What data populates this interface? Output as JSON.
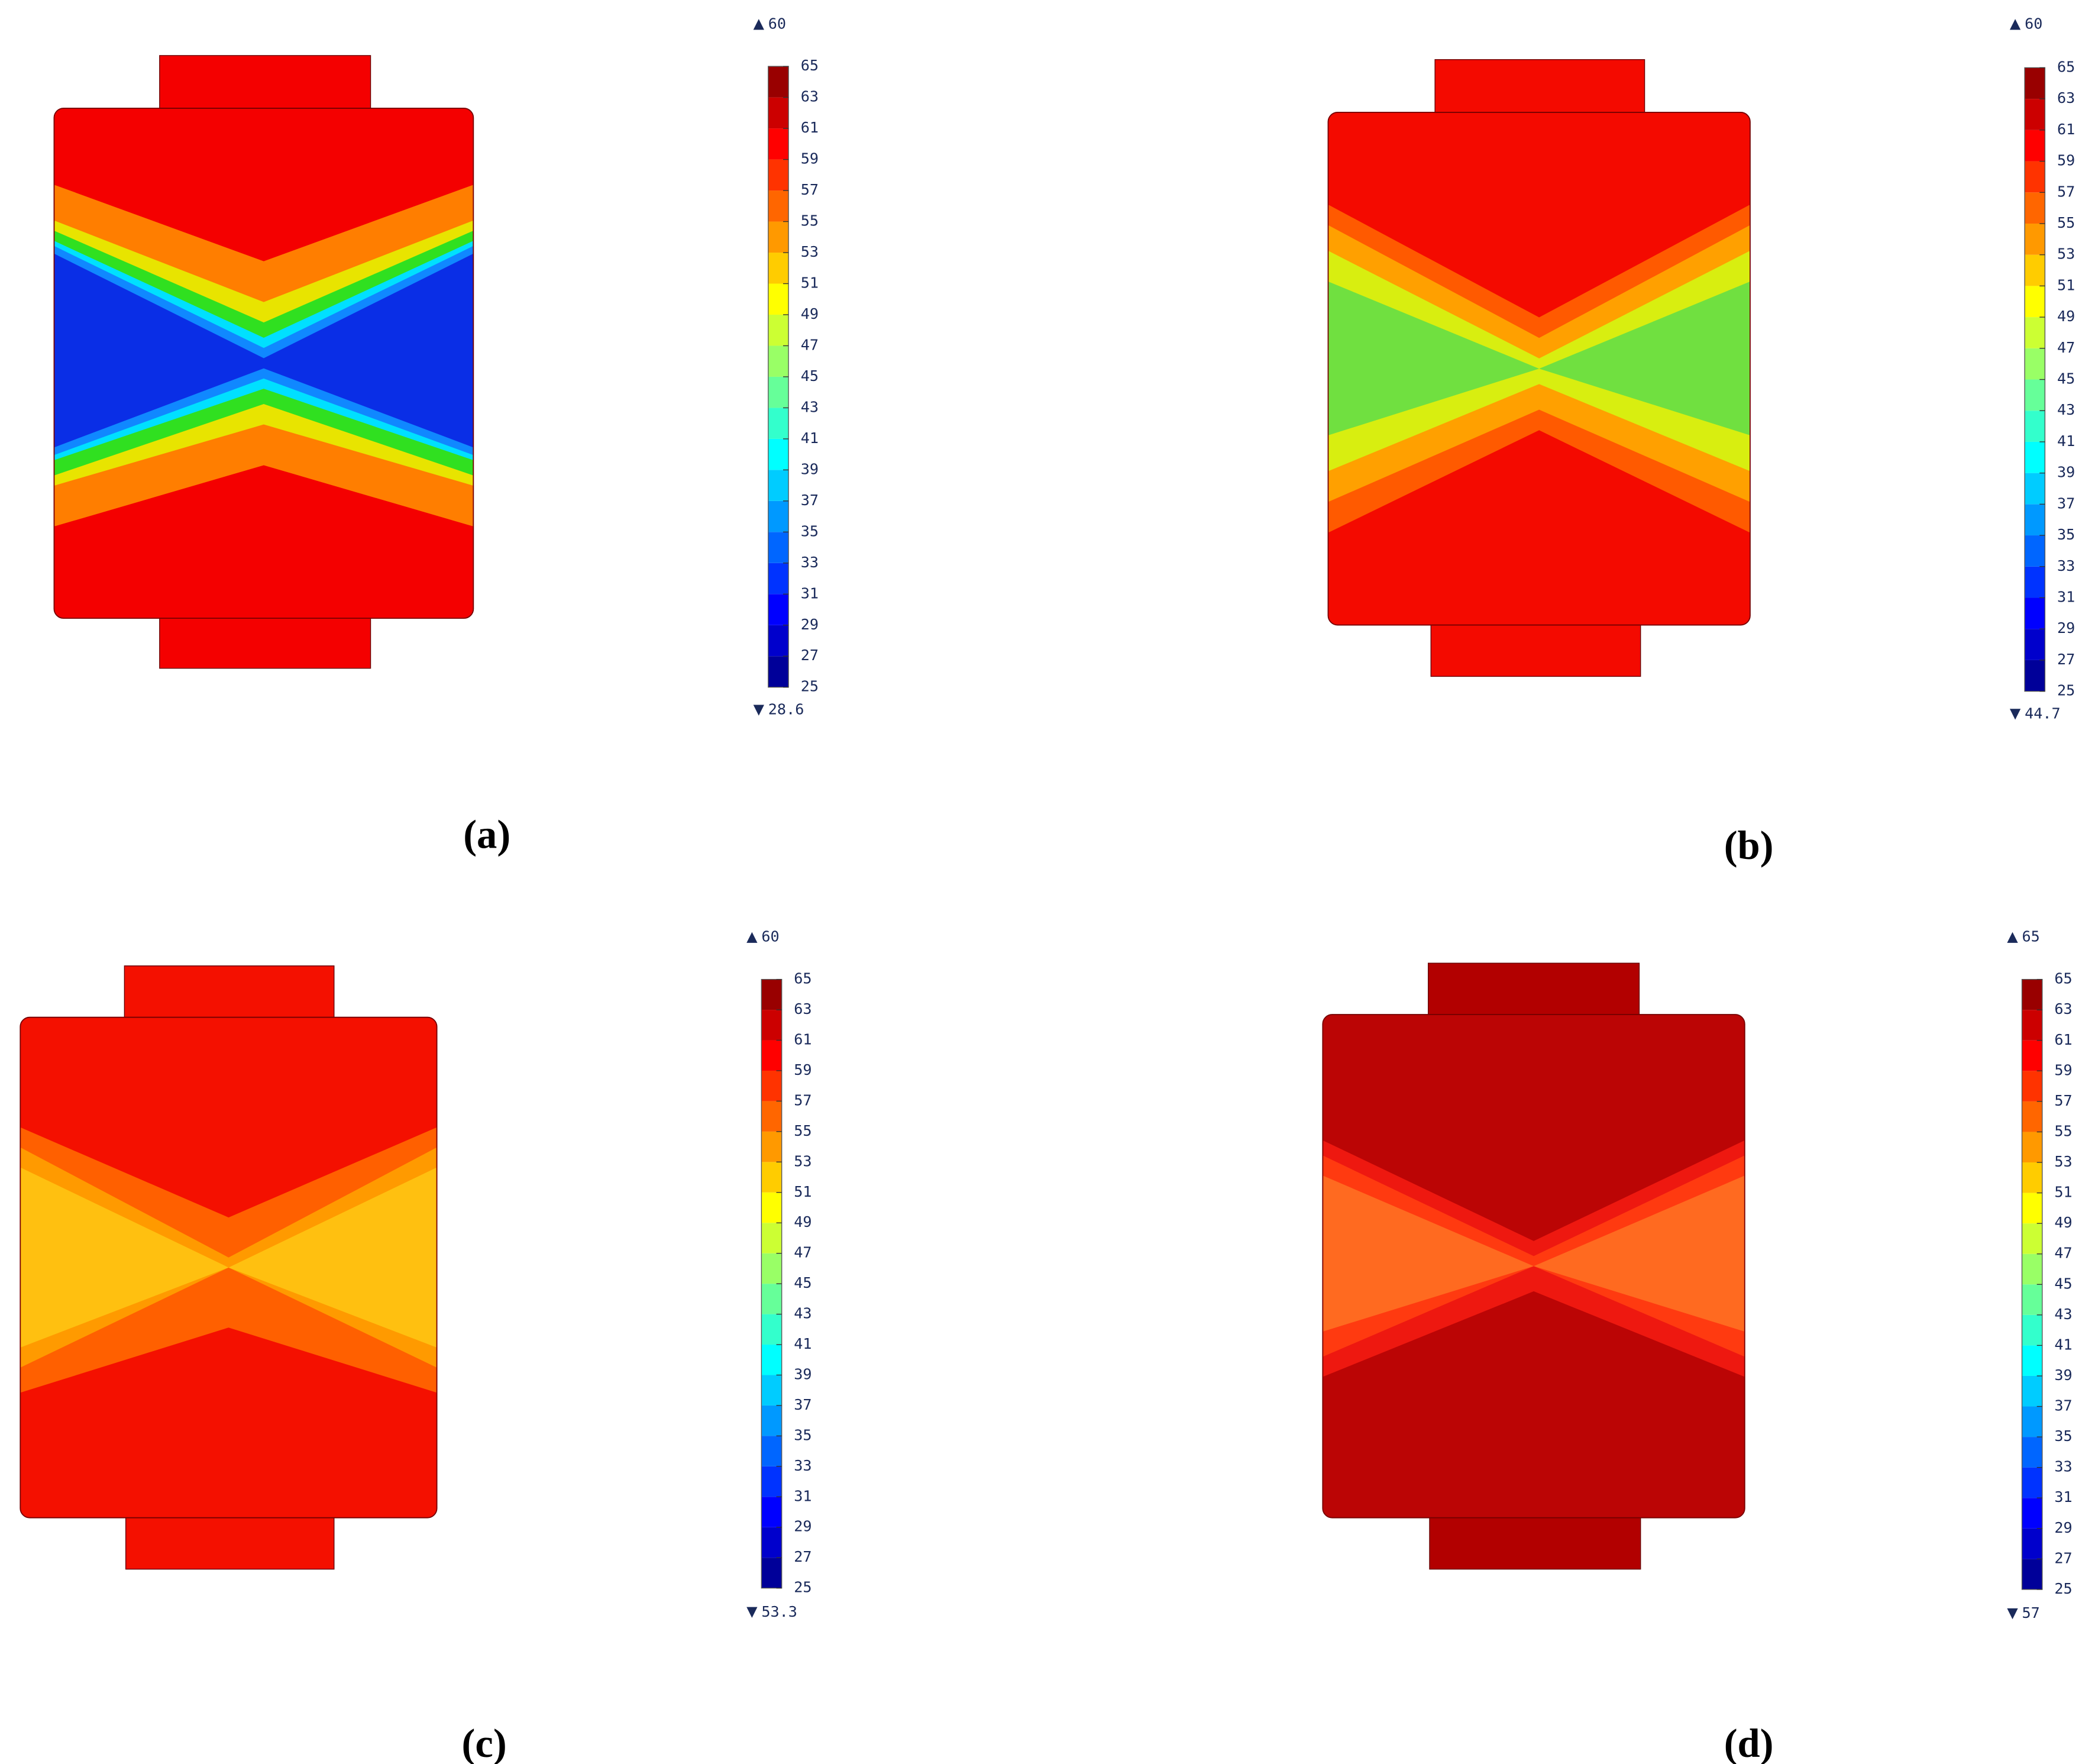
{
  "chart_data": [
    {
      "type": "contour",
      "panel_label": "(a)",
      "max": 60,
      "min": 28.6,
      "colorbar_lim": [
        25,
        65
      ],
      "colorbar_ticks": [
        25,
        27,
        29,
        31,
        33,
        35,
        37,
        39,
        41,
        43,
        45,
        47,
        49,
        51,
        53,
        55,
        57,
        59,
        61,
        63,
        65
      ]
    },
    {
      "type": "contour",
      "panel_label": "(b)",
      "max": 60,
      "min": 44.7,
      "colorbar_lim": [
        25,
        65
      ],
      "colorbar_ticks": [
        25,
        27,
        29,
        31,
        33,
        35,
        37,
        39,
        41,
        43,
        45,
        47,
        49,
        51,
        53,
        55,
        57,
        59,
        61,
        63,
        65
      ]
    },
    {
      "type": "contour",
      "panel_label": "(c)",
      "max": 60,
      "min": 53.3,
      "colorbar_lim": [
        25,
        65
      ],
      "colorbar_ticks": [
        25,
        27,
        29,
        31,
        33,
        35,
        37,
        39,
        41,
        43,
        45,
        47,
        49,
        51,
        53,
        55,
        57,
        59,
        61,
        63,
        65
      ]
    },
    {
      "type": "contour",
      "panel_label": "(d)",
      "max": 65,
      "min": 57,
      "colorbar_lim": [
        25,
        65
      ],
      "colorbar_ticks": [
        25,
        27,
        29,
        31,
        33,
        35,
        37,
        39,
        41,
        43,
        45,
        47,
        49,
        51,
        53,
        55,
        57,
        59,
        61,
        63,
        65
      ]
    }
  ]
}
